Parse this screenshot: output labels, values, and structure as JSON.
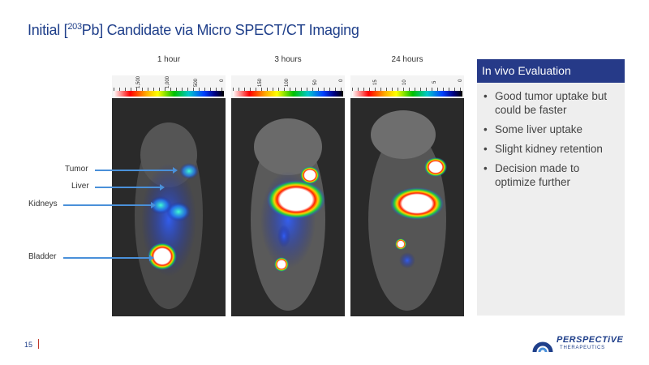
{
  "title": {
    "prefix": "Initial [",
    "sup": "203",
    "suffix": "Pb]  Candidate via Micro SPECT/CT Imaging"
  },
  "timepoints": [
    {
      "label": "1 hour",
      "scale_ticks": [
        "1,500",
        "1,000",
        "500",
        "0"
      ]
    },
    {
      "label": "3 hours",
      "scale_ticks": [
        "150",
        "100",
        "50",
        "0"
      ]
    },
    {
      "label": "24 hours",
      "scale_ticks": [
        "15",
        "10",
        "5",
        "0"
      ]
    }
  ],
  "organ_labels": [
    "Tumor",
    "Liver",
    "Kidneys",
    "Bladder"
  ],
  "sidebar": {
    "heading": "In vivo Evaluation",
    "bullets": [
      "Good tumor uptake but could be faster",
      "Some liver uptake",
      "Slight kidney retention",
      "Decision made to optimize further"
    ]
  },
  "footer": {
    "page_number": "15"
  },
  "logo": {
    "name": "PERSPECTiVE",
    "tagline": "THERAPEUTICS"
  },
  "colors": {
    "title": "#1f3f8a",
    "sidebar_header": "#263a88",
    "arrow": "#4a90d9"
  }
}
